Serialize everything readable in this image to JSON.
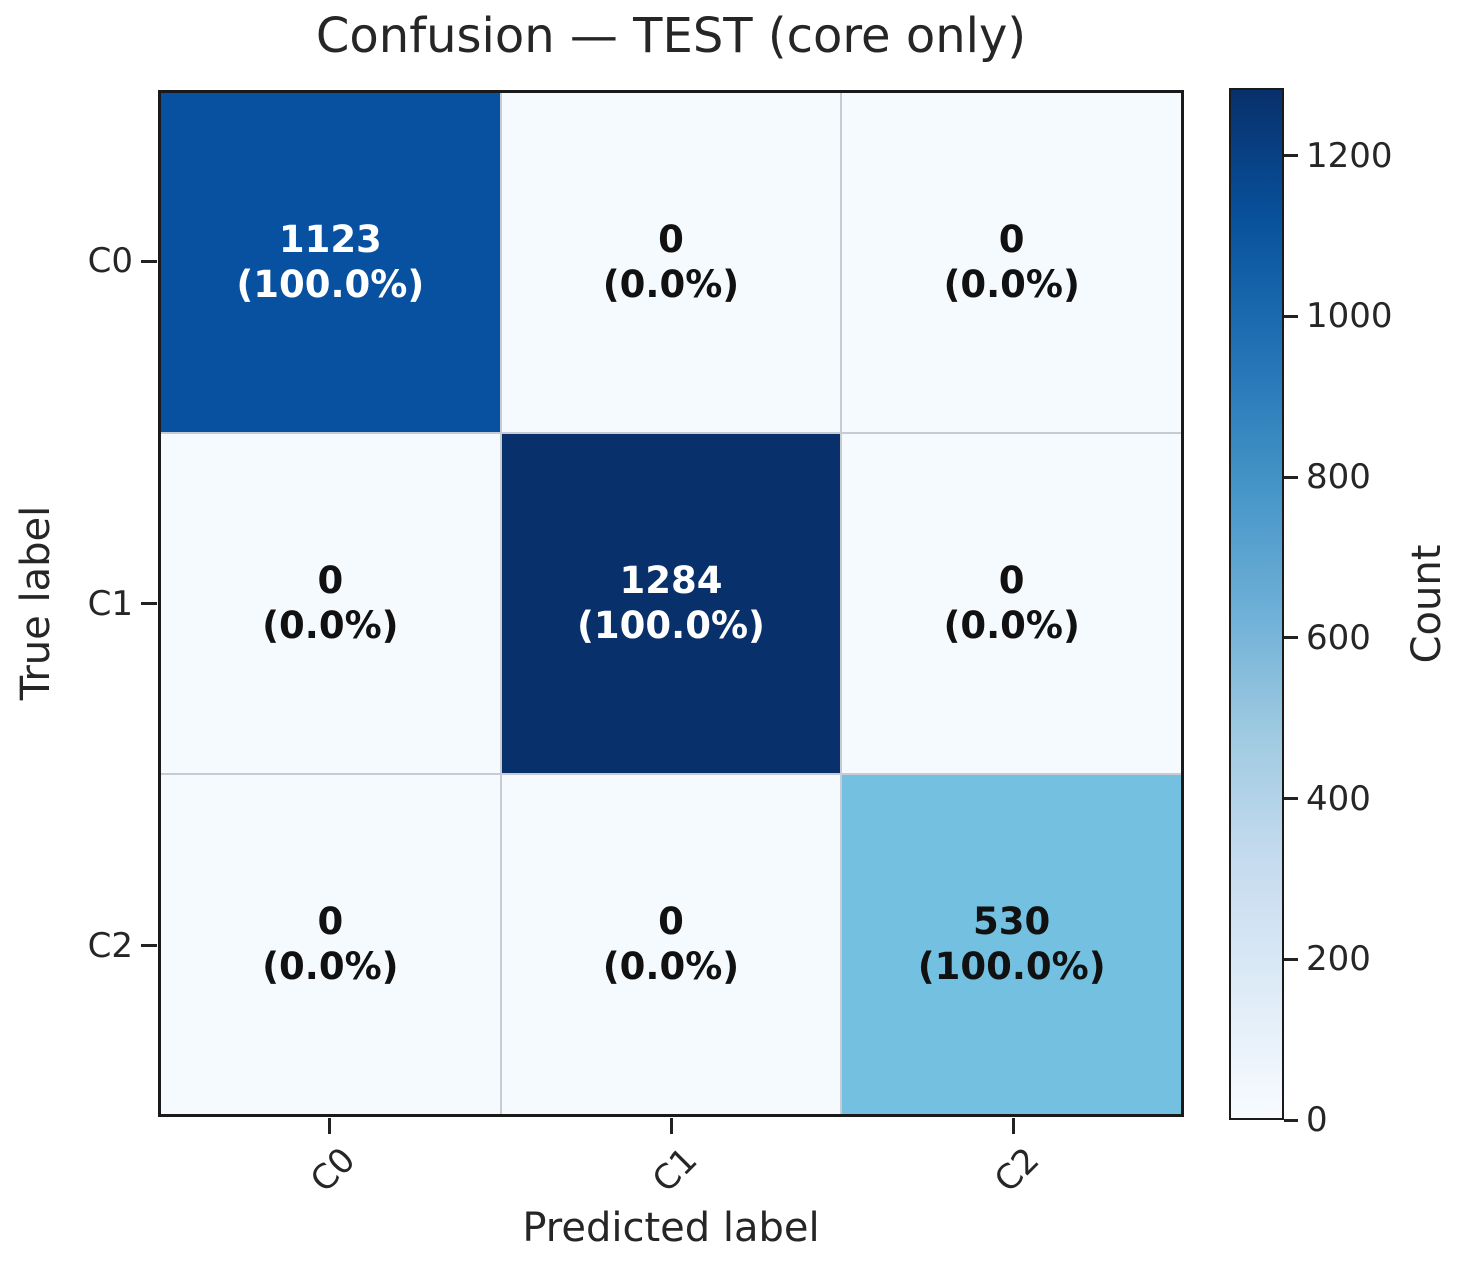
{
  "chart_data": {
    "type": "heatmap",
    "title": "Confusion — TEST (core only)",
    "xlabel": "Predicted label",
    "ylabel": "True label",
    "x_categories": [
      "C0",
      "C1",
      "C2"
    ],
    "y_categories": [
      "C0",
      "C1",
      "C2"
    ],
    "values": [
      [
        1123,
        0,
        0
      ],
      [
        0,
        1284,
        0
      ],
      [
        0,
        0,
        530
      ]
    ],
    "percent_labels": [
      [
        "(100.0%)",
        "(0.0%)",
        "(0.0%)"
      ],
      [
        "(0.0%)",
        "(100.0%)",
        "(0.0%)"
      ],
      [
        "(0.0%)",
        "(0.0%)",
        "(100.0%)"
      ]
    ],
    "colormap": "Blues",
    "vmin": 0,
    "vmax": 1284,
    "grid": true,
    "colorbar": {
      "label": "Count",
      "position": "right",
      "ticks": [
        0,
        200,
        400,
        600,
        800,
        1000,
        1200
      ]
    }
  },
  "colors": {
    "background": "#ffffff",
    "text": "#262626",
    "axis_border": "#1a1a1a",
    "grid_line": "#c6cbd4",
    "cell_fill": [
      [
        "#0850a0",
        "#f5faff",
        "#f5faff"
      ],
      [
        "#f5faff",
        "#08306b",
        "#f5faff"
      ],
      [
        "#f5faff",
        "#f5faff",
        "#73c0e0"
      ]
    ],
    "cell_text": [
      [
        "#ffffff",
        "#111111",
        "#111111"
      ],
      [
        "#111111",
        "#ffffff",
        "#111111"
      ],
      [
        "#111111",
        "#111111",
        "#111111"
      ]
    ],
    "colormap_stops": [
      "#f7fbff",
      "#deebf7",
      "#c6dbef",
      "#9ecae1",
      "#6baed6",
      "#4292c6",
      "#2171b5",
      "#08519c",
      "#08306b"
    ]
  }
}
